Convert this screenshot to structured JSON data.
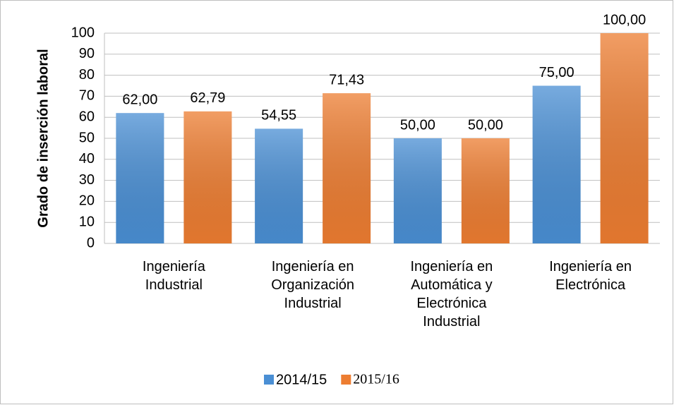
{
  "chart_data": {
    "type": "bar",
    "y_label": "Grado de inserción laboral",
    "categories": [
      "Ingeniería Industrial",
      "Ingeniería en Organización Industrial",
      "Ingeniería en Automática y Electrónica Industrial",
      "Ingeniería en Electrónica"
    ],
    "series": [
      {
        "name": "2014/15",
        "color": "#4a8fd4",
        "values": [
          62,
          54.55,
          50,
          75
        ],
        "value_labels": [
          "62,00",
          "54,55",
          "50,00",
          "75,00"
        ]
      },
      {
        "name": "2015/16",
        "color": "#ed7d31",
        "values": [
          62.79,
          71.43,
          50,
          100
        ],
        "value_labels": [
          "62,79",
          "71,43",
          "50,00",
          "100,00"
        ]
      }
    ],
    "ylim": [
      0,
      100
    ],
    "yticks": [
      0,
      10,
      20,
      30,
      40,
      50,
      60,
      70,
      80,
      90,
      100
    ],
    "grid": true,
    "legend": "bottom"
  }
}
